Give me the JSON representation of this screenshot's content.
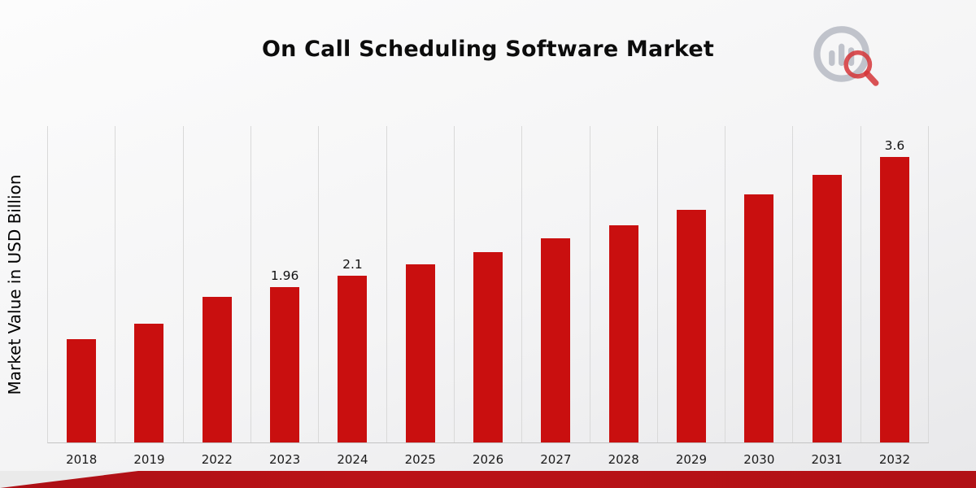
{
  "chart_data": {
    "type": "bar",
    "title": "On Call Scheduling Software Market",
    "xlabel": "",
    "ylabel": "Market Value in USD Billion",
    "ylim": [
      0,
      4
    ],
    "grid": "vertical",
    "legend": "none",
    "bar_color": "#c90f0f",
    "categories": [
      "2018",
      "2019",
      "2022",
      "2023",
      "2024",
      "2025",
      "2026",
      "2027",
      "2028",
      "2029",
      "2030",
      "2031",
      "2032"
    ],
    "values": [
      1.3,
      1.5,
      1.84,
      1.96,
      2.1,
      2.25,
      2.4,
      2.57,
      2.74,
      2.93,
      3.13,
      3.37,
      3.6
    ],
    "point_labels": [
      "",
      "",
      "",
      "1.96",
      "2.1",
      "",
      "",
      "",
      "",
      "",
      "",
      "",
      "3.6"
    ]
  },
  "logo": {
    "name": "market-research-brand-logo",
    "ring_color": "#b7bbc4",
    "accent_color": "#cf1418"
  }
}
